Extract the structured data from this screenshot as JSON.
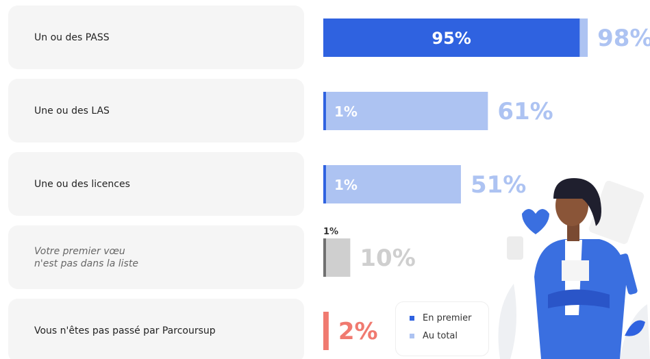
{
  "chart_data": {
    "type": "bar",
    "categories": [
      "Un ou des PASS",
      "Une ou des LAS",
      "Une ou des licences",
      "Votre premier vœu\nn'est pas dans la liste",
      "Vous n'êtes pas passé par Parcoursup"
    ],
    "series": [
      {
        "name": "En premier",
        "color": "#2f62e0",
        "colors": [
          "#2f62e0",
          "#2f62e0",
          "#2f62e0",
          "#6f6f6f",
          "#f07a70"
        ],
        "values": [
          95,
          1,
          1,
          1,
          null
        ],
        "value_labels": [
          "95%",
          "1%",
          "1%",
          "1%",
          null
        ]
      },
      {
        "name": "Au total",
        "color": "#adc3f2",
        "colors": [
          "#adc3f2",
          "#adc3f2",
          "#adc3f2",
          "#cfcfcf",
          "#f07a70"
        ],
        "values": [
          98,
          61,
          51,
          10,
          2
        ],
        "value_labels": [
          "98%",
          "61%",
          "51%",
          "10%",
          "2%"
        ]
      }
    ]
  }
}
